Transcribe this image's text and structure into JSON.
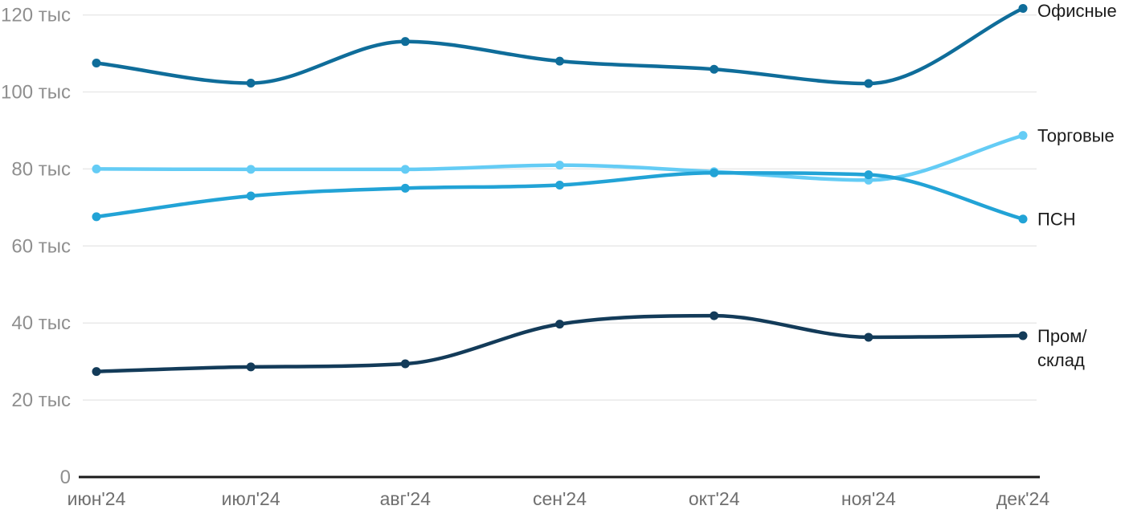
{
  "chart_data": {
    "type": "line",
    "title": "",
    "xlabel": "",
    "ylabel": "",
    "unit": "тыс",
    "grid": true,
    "legend_position": "right-end-labels",
    "ylim": [
      0,
      124
    ],
    "categories": [
      "июн'24",
      "июл'24",
      "авг'24",
      "сен'24",
      "окт'24",
      "ноя'24",
      "дек'24"
    ],
    "y_ticks": [
      {
        "value": 120,
        "label": "120 тыс"
      },
      {
        "value": 100,
        "label": "100 тыс"
      },
      {
        "value": 80,
        "label": "80 тыс"
      },
      {
        "value": 60,
        "label": "60 тыс"
      },
      {
        "value": 40,
        "label": "40 тыс"
      },
      {
        "value": 20,
        "label": "20 тыс"
      },
      {
        "value": 0,
        "label": "0"
      }
    ],
    "series": [
      {
        "id": "offices",
        "name": "Офисные",
        "label_lines": [
          "Офисные"
        ],
        "color": "#0f6d9a",
        "values": [
          107.5,
          102.3,
          113.1,
          108.0,
          105.9,
          102.2,
          121.7
        ]
      },
      {
        "id": "retail",
        "name": "Торговые",
        "label_lines": [
          "Торговые"
        ],
        "color": "#64ccf5",
        "values": [
          80.0,
          79.9,
          79.9,
          81.0,
          79.3,
          77.1,
          88.7
        ]
      },
      {
        "id": "psn",
        "name": "ПСН",
        "label_lines": [
          "ПСН"
        ],
        "color": "#22a3d6",
        "values": [
          67.6,
          73.0,
          75.0,
          75.8,
          79.0,
          78.5,
          67.0
        ]
      },
      {
        "id": "industrial",
        "name": "Пром/склад",
        "label_lines": [
          "Пром/",
          "склад"
        ],
        "color": "#133b59",
        "values": [
          27.4,
          28.6,
          29.4,
          39.7,
          41.9,
          36.3,
          36.7
        ]
      }
    ]
  },
  "colors": {
    "background": "#ffffff",
    "grid": "#e9e9e9",
    "axis": "#1a1a1a",
    "y_label": "#8f8f8f",
    "x_label": "#6f6f6f",
    "series_label": "#1c1c1c"
  }
}
